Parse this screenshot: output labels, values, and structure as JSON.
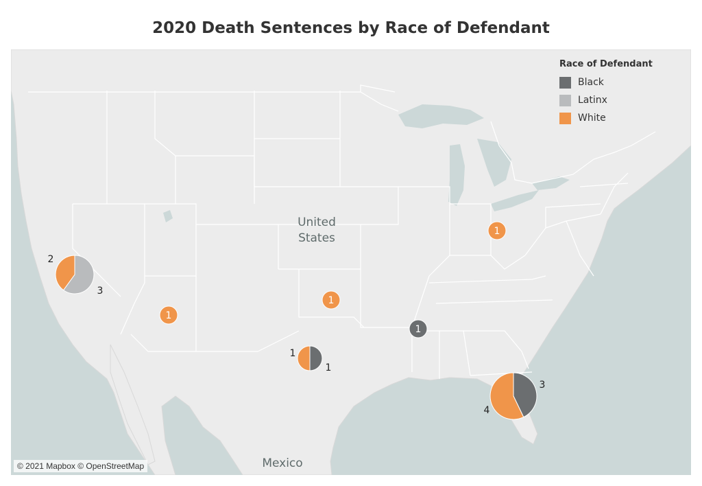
{
  "title": "2020 Death Sentences by Race of Defendant",
  "legend": {
    "title": "Race of Defendant",
    "items": [
      {
        "label": "Black",
        "color": "#6b6e70"
      },
      {
        "label": "Latinx",
        "color": "#b9bbbd"
      },
      {
        "label": "White",
        "color": "#f0954a"
      }
    ]
  },
  "map_labels": {
    "country_line1": "United",
    "country_line2": "States",
    "mexico": "Mexico"
  },
  "attribution": "© 2021 Mapbox © OpenStreetMap",
  "markers": [
    {
      "state": "California",
      "slices": [
        {
          "race": "White",
          "count": 2
        },
        {
          "race": "Latinx",
          "count": 3
        }
      ]
    },
    {
      "state": "Arizona",
      "slices": [
        {
          "race": "White",
          "count": 1
        }
      ]
    },
    {
      "state": "Oklahoma",
      "slices": [
        {
          "race": "White",
          "count": 1
        }
      ]
    },
    {
      "state": "Texas",
      "slices": [
        {
          "race": "White",
          "count": 1
        },
        {
          "race": "Black",
          "count": 1
        }
      ]
    },
    {
      "state": "Mississippi",
      "slices": [
        {
          "race": "Black",
          "count": 1
        }
      ]
    },
    {
      "state": "Ohio",
      "slices": [
        {
          "race": "White",
          "count": 1
        }
      ]
    },
    {
      "state": "Florida",
      "slices": [
        {
          "race": "White",
          "count": 4
        },
        {
          "race": "Black",
          "count": 3
        }
      ]
    }
  ]
}
